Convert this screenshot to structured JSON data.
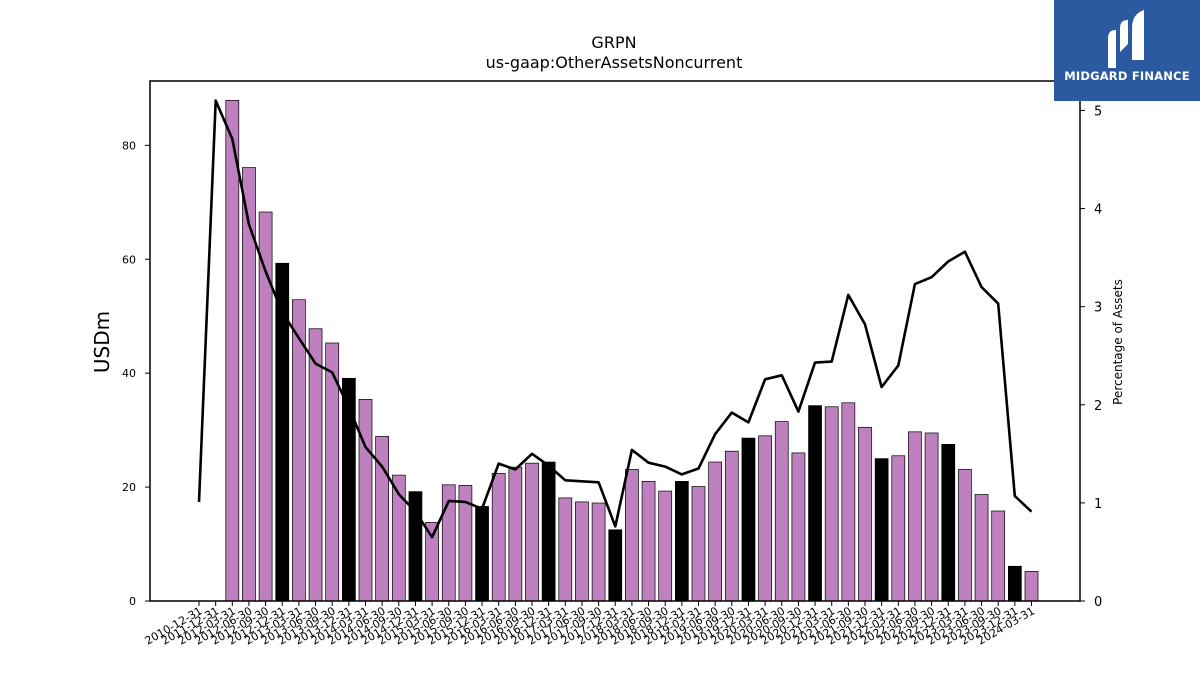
{
  "brand": {
    "name": "MIDGARD FINANCE",
    "icon": "midgard-logo-icon",
    "color": "#2c5aa0"
  },
  "chart_data": {
    "type": "bar",
    "title": "GRPN",
    "subtitle": "us-gaap:OtherAssetsNoncurrent",
    "ylabel": "USDm",
    "y2label": "Percentage of Assets",
    "ylim": [
      0,
      91.3
    ],
    "y2lim": [
      0,
      5.3
    ],
    "yticks": [
      0,
      20,
      40,
      60,
      80
    ],
    "y2ticks": [
      0,
      1,
      2,
      3,
      4,
      5
    ],
    "grid": false,
    "colors": {
      "bar_quarter": "#bf80bf",
      "bar_fiscal_year_end": "#000000",
      "line": "#000000"
    },
    "categories": [
      "2010-12-31",
      "2011-12-31",
      "2012-03-31",
      "2012-06-30",
      "2012-09-30",
      "2012-12-31",
      "2013-03-31",
      "2013-06-30",
      "2013-09-30",
      "2013-12-31",
      "2014-03-31",
      "2014-06-30",
      "2014-09-30",
      "2014-12-31",
      "2015-03-31",
      "2015-06-30",
      "2015-09-30",
      "2015-12-31",
      "2016-03-31",
      "2016-06-30",
      "2016-09-30",
      "2016-12-31",
      "2017-03-31",
      "2017-06-30",
      "2017-09-30",
      "2017-12-31",
      "2018-03-31",
      "2018-06-30",
      "2018-09-30",
      "2018-12-31",
      "2019-03-31",
      "2019-06-30",
      "2019-09-30",
      "2019-12-31",
      "2020-03-31",
      "2020-06-30",
      "2020-09-30",
      "2020-12-31",
      "2021-03-31",
      "2021-06-30",
      "2021-09-30",
      "2021-12-31",
      "2022-03-31",
      "2022-06-30",
      "2022-09-30",
      "2022-12-31",
      "2023-03-31",
      "2023-06-30",
      "2023-09-30",
      "2023-12-31",
      "2024-03-31"
    ],
    "series": [
      {
        "type": "bar",
        "values": [
          null,
          null,
          87.9,
          76.1,
          68.3,
          59.3,
          52.9,
          47.8,
          45.3,
          39.1,
          35.4,
          28.9,
          22.1,
          19.2,
          13.8,
          20.4,
          20.3,
          16.6,
          22.4,
          23.5,
          24.2,
          24.4,
          18.1,
          17.4,
          17.2,
          12.5,
          23.1,
          21.0,
          19.3,
          21.0,
          20.1,
          24.4,
          26.3,
          28.6,
          29.0,
          31.5,
          26.0,
          34.3,
          34.1,
          34.8,
          30.5,
          25.0,
          25.5,
          29.7,
          29.5,
          27.5,
          23.1,
          18.7,
          15.8,
          6.1,
          5.2
        ],
        "fiscal_year_end": [
          false,
          false,
          false,
          false,
          false,
          true,
          false,
          false,
          false,
          true,
          false,
          false,
          false,
          true,
          false,
          false,
          false,
          true,
          false,
          false,
          false,
          true,
          false,
          false,
          false,
          true,
          false,
          false,
          false,
          true,
          false,
          false,
          false,
          true,
          false,
          false,
          false,
          true,
          false,
          false,
          false,
          true,
          false,
          false,
          false,
          true,
          false,
          false,
          false,
          true,
          false
        ]
      },
      {
        "type": "line",
        "axis": "right",
        "values": [
          1.01,
          5.1,
          4.71,
          3.84,
          3.36,
          2.94,
          2.68,
          2.42,
          2.33,
          1.97,
          1.57,
          1.37,
          1.09,
          0.91,
          0.65,
          1.02,
          1.01,
          0.94,
          1.4,
          1.34,
          1.5,
          1.38,
          1.23,
          1.22,
          1.21,
          0.76,
          1.54,
          1.41,
          1.37,
          1.29,
          1.35,
          1.7,
          1.92,
          1.82,
          2.26,
          2.3,
          1.93,
          2.43,
          2.44,
          3.12,
          2.82,
          2.18,
          2.4,
          3.23,
          3.3,
          3.46,
          3.56,
          3.2,
          3.03,
          1.07,
          0.91
        ]
      }
    ]
  }
}
